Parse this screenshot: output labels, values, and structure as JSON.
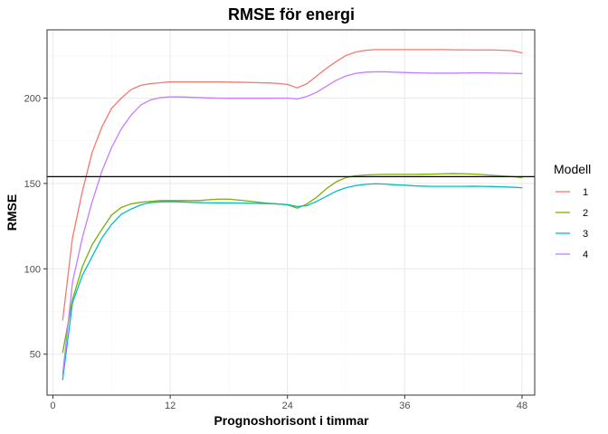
{
  "chart_data": {
    "type": "line",
    "title": "RMSE för energi",
    "xlabel": "Prognoshorisont i timmar",
    "ylabel": "RMSE",
    "xlim": [
      -0.6,
      49.3
    ],
    "ylim": [
      26,
      240
    ],
    "xticks": [
      0,
      12,
      24,
      36,
      48
    ],
    "yticks": [
      50,
      100,
      150,
      200
    ],
    "grid": true,
    "legend": {
      "title": "Modell",
      "position": "right"
    },
    "reference_line": {
      "y": 154
    },
    "x": [
      1,
      2,
      3,
      4,
      5,
      6,
      7,
      8,
      9,
      10,
      11,
      12,
      13,
      14,
      15,
      16,
      17,
      18,
      19,
      20,
      21,
      22,
      23,
      24,
      25,
      26,
      27,
      28,
      29,
      30,
      31,
      32,
      33,
      34,
      35,
      36,
      37,
      38,
      39,
      40,
      41,
      42,
      43,
      44,
      45,
      46,
      47,
      48
    ],
    "series": [
      {
        "name": "1",
        "color": "#F8766D",
        "values": [
          70,
          118,
          145,
          168,
          183,
          194,
          200,
          205,
          207.5,
          208.5,
          209,
          209.5,
          209.5,
          209.5,
          209.5,
          209.5,
          209.5,
          209.4,
          209.3,
          209.2,
          209,
          208.9,
          208.6,
          208,
          206,
          208.5,
          213,
          217.5,
          221.5,
          225,
          227,
          228,
          228.4,
          228.4,
          228.4,
          228.4,
          228.4,
          228.4,
          228.4,
          228.4,
          228.3,
          228.3,
          228.2,
          228.2,
          228.2,
          228,
          227.8,
          226.5
        ]
      },
      {
        "name": "2",
        "color": "#7CAE00",
        "values": [
          51,
          82,
          101,
          114,
          123,
          131.5,
          136,
          138,
          139,
          139.5,
          140,
          140,
          140,
          140,
          140,
          140.5,
          140.8,
          140.8,
          140.3,
          139.7,
          139,
          138.4,
          138,
          137.5,
          135.5,
          138,
          142,
          147,
          151,
          153.5,
          154.5,
          155,
          155.2,
          155.3,
          155.3,
          155.3,
          155.3,
          155.4,
          155.5,
          155.7,
          155.8,
          155.7,
          155.5,
          155.2,
          154.8,
          154.4,
          154,
          153.5
        ]
      },
      {
        "name": "3",
        "color": "#00BFC4",
        "values": [
          35,
          80,
          96,
          107,
          118,
          126,
          132,
          135,
          137.5,
          138.8,
          139.2,
          139.3,
          139.2,
          139,
          138.8,
          138.7,
          138.6,
          138.6,
          138.5,
          138.4,
          138.3,
          138.2,
          138,
          137.6,
          136.5,
          137,
          139.5,
          142.5,
          145.5,
          147.5,
          148.8,
          149.5,
          149.8,
          149.6,
          149.2,
          149,
          148.6,
          148.4,
          148.3,
          148.3,
          148.3,
          148.3,
          148.4,
          148.3,
          148.2,
          148,
          147.8,
          147.5
        ]
      },
      {
        "name": "4",
        "color": "#C77CFF",
        "values": [
          38,
          92,
          118,
          139,
          157,
          171,
          182,
          190,
          196,
          199,
          200.3,
          200.7,
          200.7,
          200.5,
          200.3,
          200.1,
          200,
          199.9,
          199.9,
          199.9,
          199.9,
          199.9,
          200,
          200,
          199.5,
          201,
          203.5,
          207,
          210.5,
          213,
          214.5,
          215.2,
          215.4,
          215.4,
          215.2,
          215,
          214.8,
          214.7,
          214.6,
          214.6,
          214.6,
          214.7,
          214.8,
          214.8,
          214.7,
          214.6,
          214.5,
          214.4
        ]
      }
    ]
  }
}
